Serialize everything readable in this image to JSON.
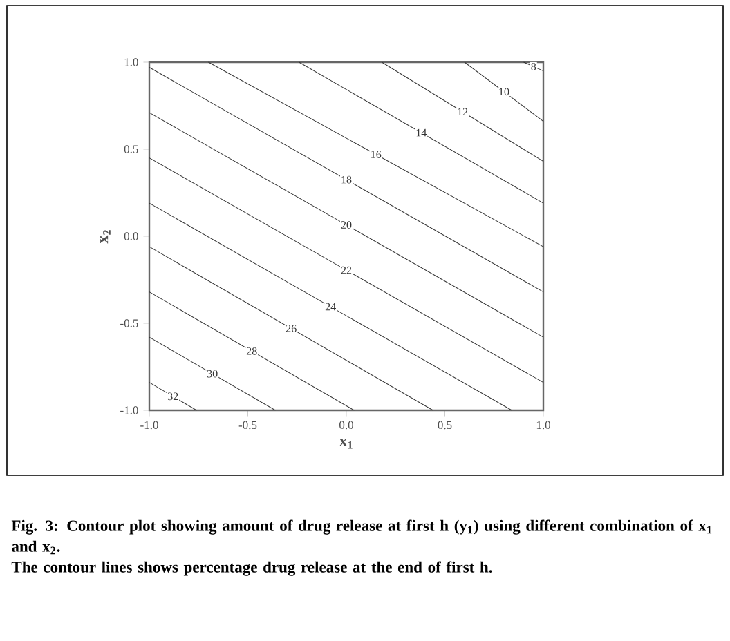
{
  "chart_data": {
    "type": "line",
    "title": "Fig. 3: Contour plot showing amount of drug release at first h (y$_{1}$) using different combination of x$_{1}$ and x$_{2}$.",
    "annotations": [
      "The contour lines shows percentage drug release at the end of first h."
    ],
    "xlabel": "x$_{1}$",
    "ylabel": "x$_{2}$",
    "xlim": [
      -1,
      1
    ],
    "ylim": [
      -1,
      1
    ],
    "xticks": [
      {
        "value": -1,
        "label": "-1.0"
      },
      {
        "value": -0.5,
        "label": "-0.5"
      },
      {
        "value": 0,
        "label": "0.0"
      },
      {
        "value": 0.5,
        "label": "0.5"
      },
      {
        "value": 1,
        "label": "1.0"
      }
    ],
    "yticks": [
      {
        "value": -1,
        "label": "-1.0"
      },
      {
        "value": -0.5,
        "label": "-0.5"
      },
      {
        "value": 0,
        "label": "0.0"
      },
      {
        "value": 0.5,
        "label": "0.5"
      },
      {
        "value": 1,
        "label": "1.0"
      }
    ],
    "line_style": "solid",
    "series": [
      {
        "name": "8",
        "color": "#333333",
        "x": [
          0.9,
          1
        ],
        "values": [
          1,
          0.95
        ]
      },
      {
        "name": "10",
        "color": "#333333",
        "x": [
          0.6,
          1
        ],
        "values": [
          1,
          0.66
        ]
      },
      {
        "name": "12",
        "color": "#333333",
        "x": [
          0.18,
          1
        ],
        "values": [
          1,
          0.43
        ]
      },
      {
        "name": "14",
        "color": "#333333",
        "x": [
          -0.24,
          1
        ],
        "values": [
          1,
          0.19
        ]
      },
      {
        "name": "16",
        "color": "#333333",
        "x": [
          -0.7,
          1
        ],
        "values": [
          1,
          -0.06
        ]
      },
      {
        "name": "18",
        "color": "#333333",
        "x": [
          -1,
          1
        ],
        "values": [
          0.97,
          -0.32
        ]
      },
      {
        "name": "20",
        "color": "#333333",
        "x": [
          -1,
          1
        ],
        "values": [
          0.71,
          -0.58
        ]
      },
      {
        "name": "22",
        "color": "#333333",
        "x": [
          -1,
          1
        ],
        "values": [
          0.45,
          -0.84
        ]
      },
      {
        "name": "24",
        "color": "#333333",
        "x": [
          -1,
          0.84
        ],
        "values": [
          0.19,
          -1
        ]
      },
      {
        "name": "26",
        "color": "#333333",
        "x": [
          -1,
          0.44
        ],
        "values": [
          -0.06,
          -1
        ]
      },
      {
        "name": "28",
        "color": "#333333",
        "x": [
          -1,
          0.04
        ],
        "values": [
          -0.32,
          -1
        ]
      },
      {
        "name": "30",
        "color": "#333333",
        "x": [
          -1,
          -0.36
        ],
        "values": [
          -0.58,
          -1
        ]
      },
      {
        "name": "32",
        "color": "#333333",
        "x": [
          -1,
          -0.76
        ],
        "values": [
          -0.84,
          -1
        ]
      }
    ]
  }
}
